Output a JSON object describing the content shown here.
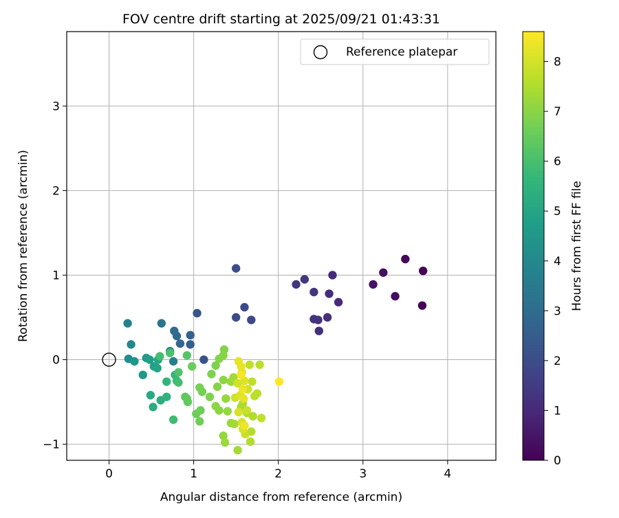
{
  "chart_data": {
    "type": "scatter",
    "title": "FOV centre drift starting at 2025/09/21 01:43:31",
    "xlabel": "Angular distance from reference (arcmin)",
    "ylabel": "Rotation from reference (arcmin)",
    "xlim": [
      -0.5,
      4.57
    ],
    "ylim": [
      -1.19,
      3.88
    ],
    "xticks": [
      0,
      1,
      2,
      3,
      4
    ],
    "xtick_labels": [
      "0",
      "1",
      "2",
      "3",
      "4"
    ],
    "yticks": [
      -1,
      0,
      1,
      2,
      3
    ],
    "ytick_labels": [
      "−1",
      "0",
      "1",
      "2",
      "3"
    ],
    "grid": true,
    "legend": {
      "position": "top-right",
      "entries": [
        "Reference platepar"
      ]
    },
    "reference_point": {
      "x": 0,
      "y": 0
    },
    "colorbar": {
      "label": "Hours from first FF file",
      "min": 0,
      "max": 8.6,
      "ticks": [
        0,
        1,
        2,
        3,
        4,
        5,
        6,
        7,
        8
      ],
      "tick_labels": [
        "0",
        "1",
        "2",
        "3",
        "4",
        "5",
        "6",
        "7",
        "8"
      ],
      "colormap": "viridis"
    },
    "points": [
      {
        "x": 3.7,
        "y": 0.64,
        "h": 0.0
      },
      {
        "x": 3.71,
        "y": 1.05,
        "h": 0.1
      },
      {
        "x": 3.5,
        "y": 1.19,
        "h": 0.2
      },
      {
        "x": 3.38,
        "y": 0.75,
        "h": 0.3
      },
      {
        "x": 3.24,
        "y": 1.03,
        "h": 0.35
      },
      {
        "x": 3.12,
        "y": 0.89,
        "h": 0.45
      },
      {
        "x": 2.71,
        "y": 0.68,
        "h": 1.0
      },
      {
        "x": 2.64,
        "y": 1.0,
        "h": 1.05
      },
      {
        "x": 2.6,
        "y": 0.78,
        "h": 1.1
      },
      {
        "x": 2.58,
        "y": 0.5,
        "h": 1.15
      },
      {
        "x": 2.48,
        "y": 0.34,
        "h": 1.2
      },
      {
        "x": 2.47,
        "y": 0.47,
        "h": 1.25
      },
      {
        "x": 2.42,
        "y": 0.48,
        "h": 1.3
      },
      {
        "x": 2.42,
        "y": 0.8,
        "h": 1.3
      },
      {
        "x": 2.31,
        "y": 0.95,
        "h": 1.35
      },
      {
        "x": 2.21,
        "y": 0.89,
        "h": 1.4
      },
      {
        "x": 1.68,
        "y": 0.47,
        "h": 1.9
      },
      {
        "x": 1.6,
        "y": 0.62,
        "h": 1.95
      },
      {
        "x": 1.5,
        "y": 0.5,
        "h": 2.0
      },
      {
        "x": 1.5,
        "y": 1.08,
        "h": 2.05
      },
      {
        "x": 1.12,
        "y": 0.0,
        "h": 2.2
      },
      {
        "x": 1.04,
        "y": 0.55,
        "h": 2.3
      },
      {
        "x": 0.96,
        "y": 0.18,
        "h": 2.6
      },
      {
        "x": 0.96,
        "y": 0.29,
        "h": 2.7
      },
      {
        "x": 0.84,
        "y": 0.19,
        "h": 2.8
      },
      {
        "x": 0.8,
        "y": 0.28,
        "h": 2.9
      },
      {
        "x": 0.77,
        "y": 0.34,
        "h": 3.0
      },
      {
        "x": 0.62,
        "y": 0.43,
        "h": 3.3
      },
      {
        "x": 0.72,
        "y": 0.1,
        "h": 3.5
      },
      {
        "x": 0.76,
        "y": -0.02,
        "h": 3.7
      },
      {
        "x": 0.22,
        "y": 0.43,
        "h": 3.8
      },
      {
        "x": 0.26,
        "y": 0.18,
        "h": 4.0
      },
      {
        "x": 0.23,
        "y": 0.01,
        "h": 4.2
      },
      {
        "x": 0.3,
        "y": -0.02,
        "h": 4.5
      },
      {
        "x": 0.4,
        "y": -0.18,
        "h": 4.6
      },
      {
        "x": 0.44,
        "y": 0.02,
        "h": 4.7
      },
      {
        "x": 0.48,
        "y": 0.0,
        "h": 4.8
      },
      {
        "x": 0.53,
        "y": -0.08,
        "h": 4.9
      },
      {
        "x": 0.57,
        "y": -0.1,
        "h": 5.0
      },
      {
        "x": 0.58,
        "y": 0.0,
        "h": 5.1
      },
      {
        "x": 0.49,
        "y": -0.42,
        "h": 5.2
      },
      {
        "x": 0.52,
        "y": -0.56,
        "h": 5.3
      },
      {
        "x": 0.61,
        "y": -0.48,
        "h": 5.4
      },
      {
        "x": 0.68,
        "y": -0.44,
        "h": 5.5
      },
      {
        "x": 0.68,
        "y": -0.26,
        "h": 5.6
      },
      {
        "x": 0.78,
        "y": -0.18,
        "h": 5.7
      },
      {
        "x": 0.8,
        "y": -0.25,
        "h": 5.8
      },
      {
        "x": 0.76,
        "y": -0.71,
        "h": 5.9
      },
      {
        "x": 0.82,
        "y": -0.27,
        "h": 6.0
      },
      {
        "x": 0.6,
        "y": 0.04,
        "h": 6.0
      },
      {
        "x": 0.72,
        "y": 0.08,
        "h": 6.1
      },
      {
        "x": 0.82,
        "y": -0.15,
        "h": 6.2
      },
      {
        "x": 0.92,
        "y": 0.05,
        "h": 6.3
      },
      {
        "x": 0.9,
        "y": -0.44,
        "h": 6.4
      },
      {
        "x": 0.93,
        "y": -0.5,
        "h": 6.5
      },
      {
        "x": 0.92,
        "y": -0.46,
        "h": 6.5
      },
      {
        "x": 0.98,
        "y": -0.08,
        "h": 6.6
      },
      {
        "x": 1.03,
        "y": -0.64,
        "h": 6.6
      },
      {
        "x": 1.08,
        "y": -0.6,
        "h": 6.7
      },
      {
        "x": 1.07,
        "y": -0.73,
        "h": 6.7
      },
      {
        "x": 1.07,
        "y": -0.33,
        "h": 6.8
      },
      {
        "x": 1.1,
        "y": -0.38,
        "h": 6.8
      },
      {
        "x": 1.21,
        "y": -0.17,
        "h": 6.9
      },
      {
        "x": 1.19,
        "y": -0.44,
        "h": 6.9
      },
      {
        "x": 1.26,
        "y": -0.07,
        "h": 6.9
      },
      {
        "x": 1.3,
        "y": 0.01,
        "h": 7.0
      },
      {
        "x": 1.36,
        "y": 0.12,
        "h": 7.0
      },
      {
        "x": 1.35,
        "y": 0.05,
        "h": 7.0
      },
      {
        "x": 1.28,
        "y": -0.32,
        "h": 7.0
      },
      {
        "x": 1.3,
        "y": -0.6,
        "h": 7.1
      },
      {
        "x": 1.26,
        "y": -0.55,
        "h": 7.1
      },
      {
        "x": 1.35,
        "y": -0.24,
        "h": 7.1
      },
      {
        "x": 1.38,
        "y": -0.46,
        "h": 7.2
      },
      {
        "x": 1.4,
        "y": -0.61,
        "h": 7.2
      },
      {
        "x": 1.35,
        "y": -0.9,
        "h": 7.2
      },
      {
        "x": 1.37,
        "y": -0.98,
        "h": 7.3
      },
      {
        "x": 1.44,
        "y": -0.26,
        "h": 7.3
      },
      {
        "x": 1.44,
        "y": -0.75,
        "h": 7.3
      },
      {
        "x": 1.48,
        "y": -0.76,
        "h": 7.4
      },
      {
        "x": 1.47,
        "y": -0.21,
        "h": 7.4
      },
      {
        "x": 1.52,
        "y": -1.07,
        "h": 7.4
      },
      {
        "x": 1.56,
        "y": -0.56,
        "h": 7.5
      },
      {
        "x": 1.58,
        "y": -0.52,
        "h": 7.5
      },
      {
        "x": 1.63,
        "y": -0.63,
        "h": 7.5
      },
      {
        "x": 1.68,
        "y": -0.85,
        "h": 7.6
      },
      {
        "x": 1.67,
        "y": -0.97,
        "h": 7.6
      },
      {
        "x": 1.7,
        "y": -0.67,
        "h": 7.6
      },
      {
        "x": 1.72,
        "y": -0.43,
        "h": 7.7
      },
      {
        "x": 1.75,
        "y": -0.4,
        "h": 7.7
      },
      {
        "x": 1.78,
        "y": -0.06,
        "h": 7.7
      },
      {
        "x": 1.8,
        "y": -0.69,
        "h": 7.8
      },
      {
        "x": 1.66,
        "y": -0.06,
        "h": 7.8
      },
      {
        "x": 1.69,
        "y": -0.26,
        "h": 7.8
      },
      {
        "x": 1.61,
        "y": -0.88,
        "h": 7.9
      },
      {
        "x": 1.63,
        "y": -0.6,
        "h": 7.9
      },
      {
        "x": 1.52,
        "y": -0.28,
        "h": 8.0
      },
      {
        "x": 1.49,
        "y": -0.45,
        "h": 8.0
      },
      {
        "x": 1.64,
        "y": -0.35,
        "h": 8.0
      },
      {
        "x": 1.53,
        "y": -0.62,
        "h": 8.1
      },
      {
        "x": 1.57,
        "y": -0.74,
        "h": 8.1
      },
      {
        "x": 1.58,
        "y": -0.82,
        "h": 8.1
      },
      {
        "x": 1.55,
        "y": -0.42,
        "h": 8.2
      },
      {
        "x": 1.57,
        "y": -0.15,
        "h": 8.2
      },
      {
        "x": 1.6,
        "y": -0.25,
        "h": 8.2
      },
      {
        "x": 1.56,
        "y": -0.08,
        "h": 8.3
      },
      {
        "x": 1.53,
        "y": -0.02,
        "h": 8.3
      },
      {
        "x": 1.59,
        "y": -0.46,
        "h": 8.3
      },
      {
        "x": 1.6,
        "y": -0.78,
        "h": 8.4
      },
      {
        "x": 1.58,
        "y": -0.35,
        "h": 8.4
      },
      {
        "x": 1.56,
        "y": -0.18,
        "h": 8.5
      },
      {
        "x": 2.01,
        "y": -0.26,
        "h": 8.6
      }
    ]
  }
}
